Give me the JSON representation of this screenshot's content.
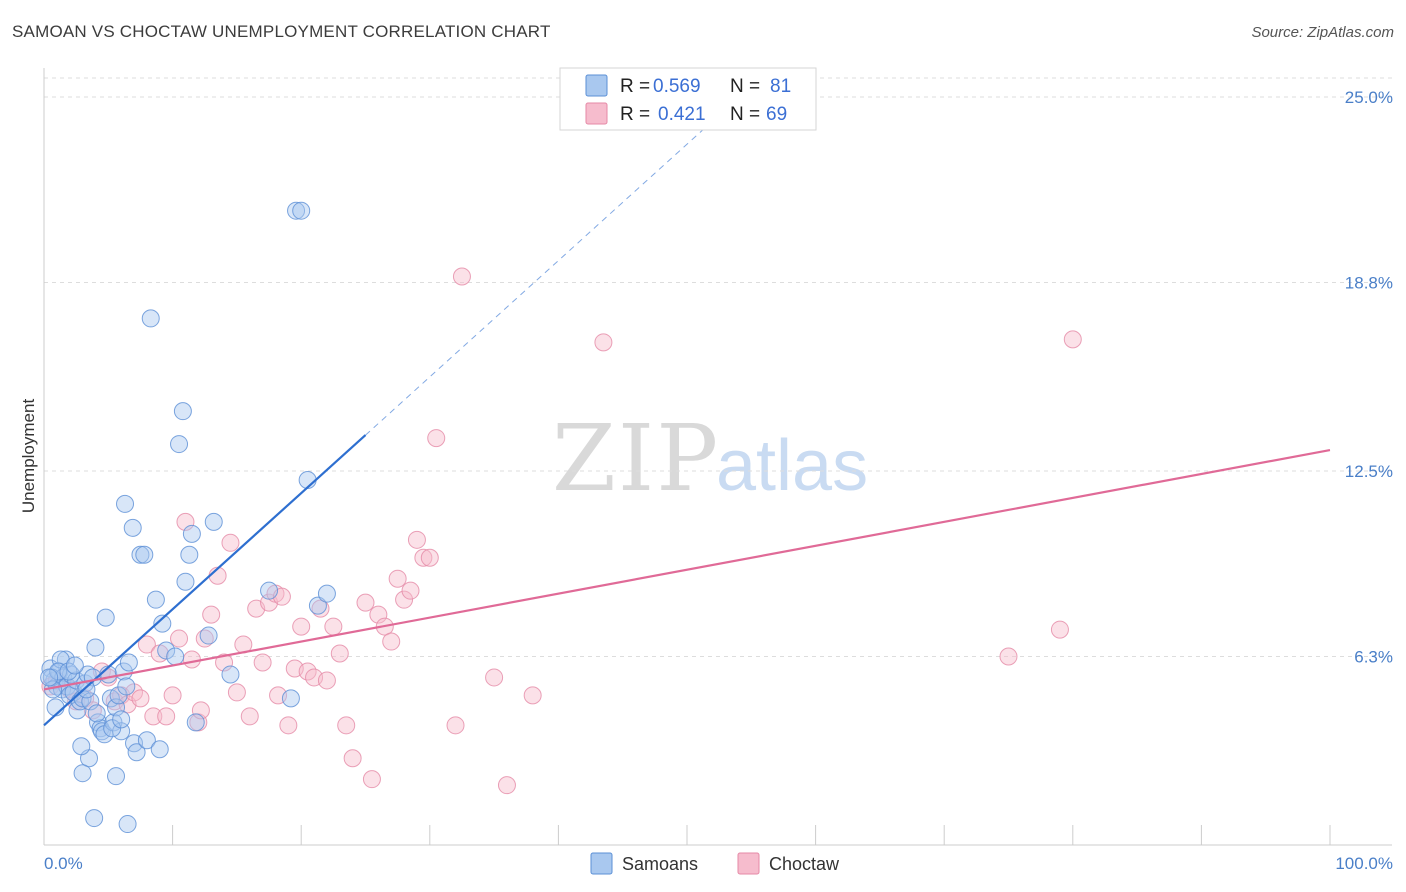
{
  "title": "SAMOAN VS CHOCTAW UNEMPLOYMENT CORRELATION CHART",
  "source": "Source: ZipAtlas.com",
  "watermark": {
    "part1": "ZIP",
    "part2": "atlas"
  },
  "colors": {
    "samoans_fill": "#a9c8ef",
    "samoans_stroke": "#5b8fd6",
    "samoans_line": "#2e6fd0",
    "choctaw_fill": "#f6bccd",
    "choctaw_stroke": "#e589a6",
    "choctaw_line": "#e06a97",
    "tick_text": "#4a7fc8",
    "grid": "#dddddd"
  },
  "legend": {
    "rows": [
      {
        "r_label": "R =",
        "r_value": "0.569",
        "n_label": "N =",
        "n_value": "81"
      },
      {
        "r_label": "R =",
        "r_value": "0.421",
        "n_label": "N =",
        "n_value": "69"
      }
    ]
  },
  "bottom_legend": {
    "items": [
      "Samoans",
      "Choctaw"
    ]
  },
  "chart_data": {
    "type": "scatter",
    "title": "SAMOAN VS CHOCTAW UNEMPLOYMENT CORRELATION CHART",
    "xlabel": "",
    "ylabel": "Unemployment",
    "xlim": [
      0,
      100
    ],
    "ylim": [
      0,
      26.3
    ],
    "x_tick_labels": [
      "0.0%",
      "100.0%"
    ],
    "y_ticks": [
      6.3,
      12.5,
      18.8,
      25.0
    ],
    "y_tick_labels": [
      "6.3%",
      "12.5%",
      "18.8%",
      "25.0%"
    ],
    "grid": true,
    "legend_position": "top-center",
    "series": [
      {
        "name": "Samoans",
        "r": 0.569,
        "n": 81,
        "trend": {
          "x": [
            0,
            25
          ],
          "y": [
            4.0,
            13.7
          ],
          "dashed_to": [
            52,
            24.2
          ]
        },
        "points": [
          [
            0.5,
            5.9
          ],
          [
            0.8,
            5.5
          ],
          [
            1.0,
            5.3
          ],
          [
            1.2,
            5.8
          ],
          [
            1.4,
            5.2
          ],
          [
            0.6,
            5.6
          ],
          [
            0.9,
            4.6
          ],
          [
            1.5,
            5.6
          ],
          [
            1.7,
            6.2
          ],
          [
            1.8,
            5.3
          ],
          [
            2.0,
            5.0
          ],
          [
            2.1,
            5.7
          ],
          [
            2.3,
            5.1
          ],
          [
            2.5,
            5.5
          ],
          [
            2.6,
            4.5
          ],
          [
            2.8,
            4.8
          ],
          [
            3.0,
            4.9
          ],
          [
            3.2,
            5.4
          ],
          [
            3.4,
            5.7
          ],
          [
            3.6,
            4.8
          ],
          [
            3.8,
            5.6
          ],
          [
            4.0,
            6.6
          ],
          [
            4.2,
            4.1
          ],
          [
            4.4,
            3.9
          ],
          [
            4.5,
            3.8
          ],
          [
            4.7,
            3.7
          ],
          [
            5.0,
            5.7
          ],
          [
            5.2,
            4.9
          ],
          [
            5.4,
            4.1
          ],
          [
            5.6,
            4.6
          ],
          [
            5.8,
            5.0
          ],
          [
            6.0,
            3.8
          ],
          [
            6.2,
            5.8
          ],
          [
            6.4,
            5.3
          ],
          [
            6.6,
            6.1
          ],
          [
            7.0,
            3.4
          ],
          [
            7.2,
            3.1
          ],
          [
            7.5,
            9.7
          ],
          [
            7.8,
            9.7
          ],
          [
            8.0,
            3.5
          ],
          [
            8.3,
            17.6
          ],
          [
            8.7,
            8.2
          ],
          [
            9.0,
            3.2
          ],
          [
            9.2,
            7.4
          ],
          [
            9.5,
            6.5
          ],
          [
            10.2,
            6.3
          ],
          [
            10.5,
            13.4
          ],
          [
            10.8,
            14.5
          ],
          [
            11.0,
            8.8
          ],
          [
            11.3,
            9.7
          ],
          [
            11.5,
            10.4
          ],
          [
            11.8,
            4.1
          ],
          [
            12.8,
            7.0
          ],
          [
            13.2,
            10.8
          ],
          [
            14.5,
            5.7
          ],
          [
            17.5,
            8.5
          ],
          [
            19.2,
            4.9
          ],
          [
            19.6,
            21.2
          ],
          [
            20.0,
            21.2
          ],
          [
            20.5,
            12.2
          ],
          [
            21.3,
            8.0
          ],
          [
            22.0,
            8.4
          ],
          [
            6.3,
            11.4
          ],
          [
            6.9,
            10.6
          ],
          [
            4.8,
            7.6
          ],
          [
            3.5,
            2.9
          ],
          [
            3.9,
            0.9
          ],
          [
            5.6,
            2.3
          ],
          [
            6.5,
            0.7
          ],
          [
            3.0,
            2.4
          ],
          [
            2.9,
            3.3
          ],
          [
            1.3,
            6.2
          ],
          [
            1.1,
            5.8
          ],
          [
            0.7,
            5.2
          ],
          [
            0.4,
            5.6
          ],
          [
            1.9,
            5.8
          ],
          [
            2.4,
            6.0
          ],
          [
            3.3,
            5.2
          ],
          [
            4.1,
            4.4
          ],
          [
            5.3,
            3.9
          ],
          [
            6.0,
            4.2
          ]
        ]
      },
      {
        "name": "Choctaw",
        "r": 0.421,
        "n": 69,
        "trend": {
          "x": [
            0,
            100
          ],
          "y": [
            5.2,
            13.2
          ]
        },
        "points": [
          [
            0.5,
            5.3
          ],
          [
            1.0,
            5.5
          ],
          [
            2.0,
            5.2
          ],
          [
            2.5,
            4.8
          ],
          [
            3.2,
            4.9
          ],
          [
            3.8,
            4.5
          ],
          [
            4.5,
            5.8
          ],
          [
            5.0,
            5.6
          ],
          [
            5.5,
            4.8
          ],
          [
            6.0,
            5.0
          ],
          [
            6.5,
            4.7
          ],
          [
            7.0,
            5.1
          ],
          [
            7.5,
            4.9
          ],
          [
            8.0,
            6.7
          ],
          [
            8.5,
            4.3
          ],
          [
            9.0,
            6.4
          ],
          [
            9.5,
            4.3
          ],
          [
            10.0,
            5.0
          ],
          [
            10.5,
            6.9
          ],
          [
            11.0,
            10.8
          ],
          [
            11.5,
            6.2
          ],
          [
            12.0,
            4.1
          ],
          [
            12.5,
            6.9
          ],
          [
            13.0,
            7.7
          ],
          [
            13.5,
            9.0
          ],
          [
            14.0,
            6.1
          ],
          [
            14.5,
            10.1
          ],
          [
            15.0,
            5.1
          ],
          [
            15.5,
            6.7
          ],
          [
            16.0,
            4.3
          ],
          [
            16.5,
            7.9
          ],
          [
            17.0,
            6.1
          ],
          [
            17.5,
            8.1
          ],
          [
            18.0,
            8.4
          ],
          [
            18.5,
            8.3
          ],
          [
            19.0,
            4.0
          ],
          [
            19.5,
            5.9
          ],
          [
            20.0,
            7.3
          ],
          [
            20.5,
            5.8
          ],
          [
            21.0,
            5.6
          ],
          [
            21.5,
            7.9
          ],
          [
            22.0,
            5.5
          ],
          [
            22.5,
            7.3
          ],
          [
            23.0,
            6.4
          ],
          [
            23.5,
            4.0
          ],
          [
            24.0,
            2.9
          ],
          [
            25.0,
            8.1
          ],
          [
            25.5,
            2.2
          ],
          [
            26.0,
            7.7
          ],
          [
            26.5,
            7.3
          ],
          [
            27.0,
            6.8
          ],
          [
            27.5,
            8.9
          ],
          [
            28.0,
            8.2
          ],
          [
            28.5,
            8.5
          ],
          [
            29.0,
            10.2
          ],
          [
            29.5,
            9.6
          ],
          [
            30.0,
            9.6
          ],
          [
            30.5,
            13.6
          ],
          [
            32.0,
            4.0
          ],
          [
            32.5,
            19.0
          ],
          [
            35.0,
            5.6
          ],
          [
            36.0,
            2.0
          ],
          [
            38.0,
            5.0
          ],
          [
            43.5,
            16.8
          ],
          [
            75.0,
            6.3
          ],
          [
            79.0,
            7.2
          ],
          [
            80.0,
            16.9
          ],
          [
            18.2,
            5.0
          ],
          [
            12.2,
            4.5
          ]
        ]
      }
    ]
  }
}
